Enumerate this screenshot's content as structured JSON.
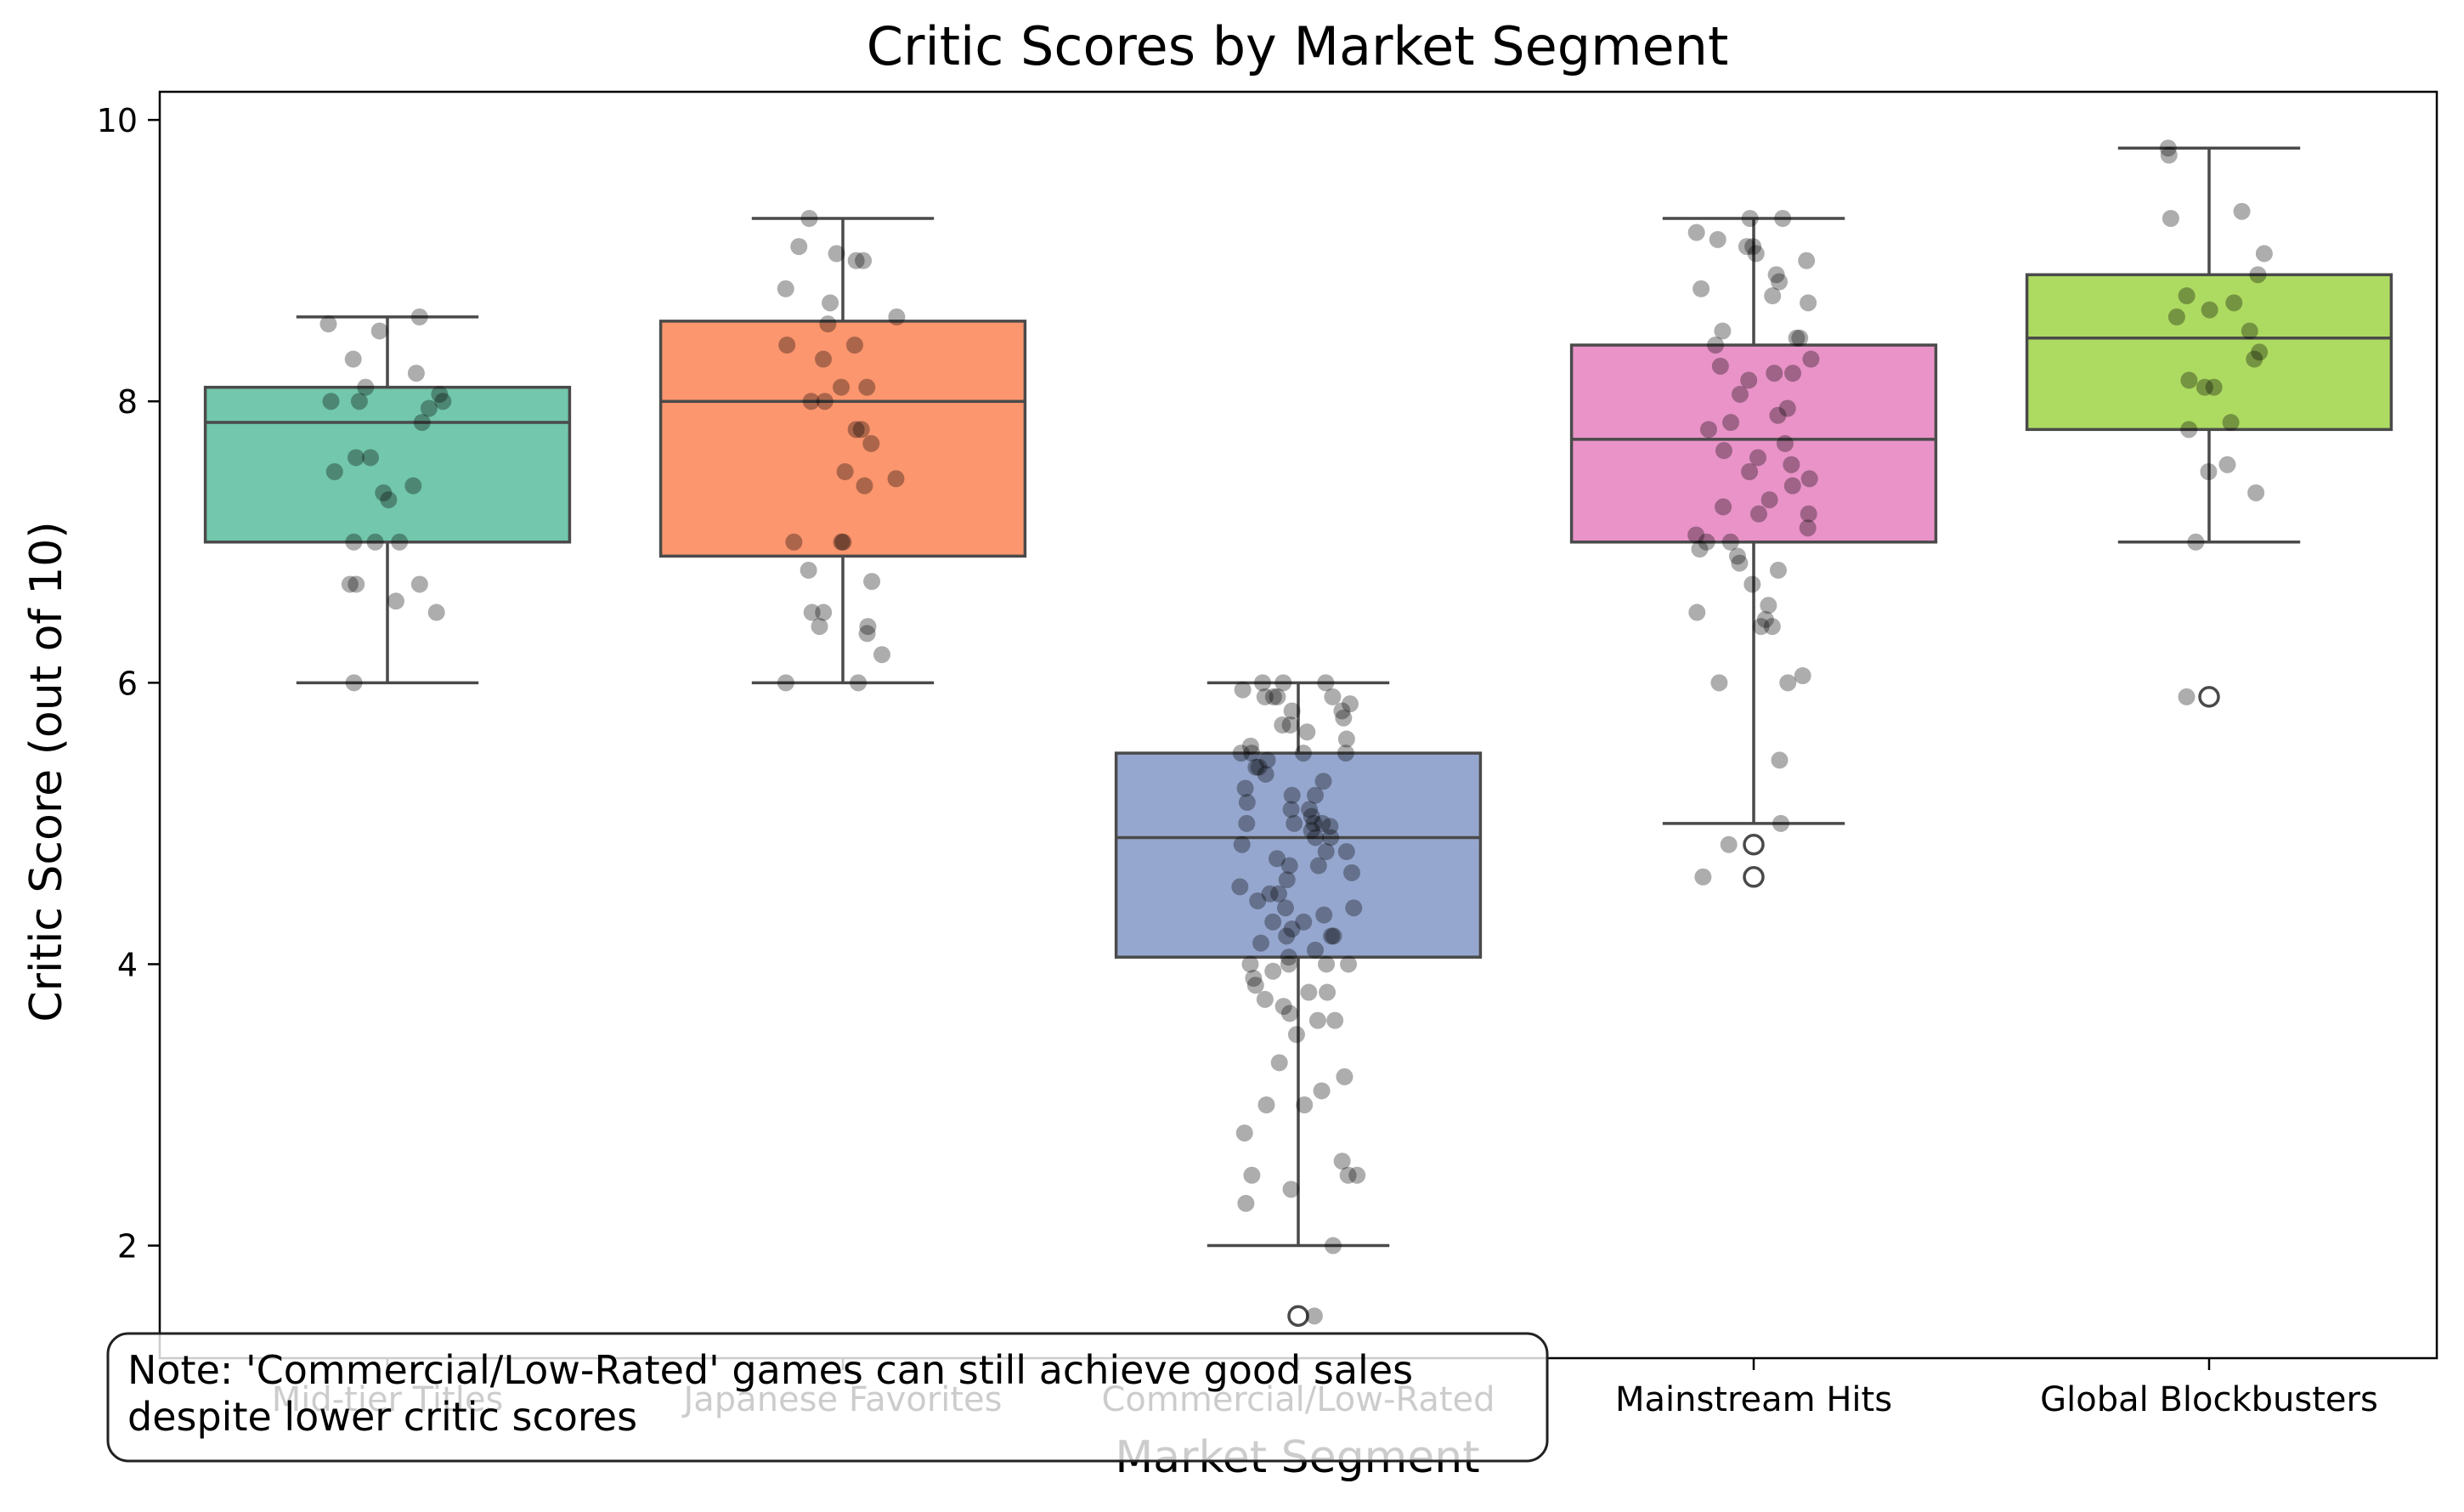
{
  "chart_data": {
    "type": "box",
    "title": "Critic Scores by Market Segment",
    "xlabel": "Market Segment",
    "ylabel": "Critic Score (out of 10)",
    "ylim": [
      1.2,
      10.2
    ],
    "yticks": [
      2,
      4,
      6,
      8,
      10
    ],
    "grid": false,
    "note": {
      "line1": "Note: 'Commercial/Low-Rated' games can still achieve good sales",
      "line2": "despite lower critic scores"
    },
    "categories": [
      "Mid-tier Titles",
      "Japanese Favorites",
      "Commercial/Low-Rated",
      "Mainstream Hits",
      "Global Blockbusters"
    ],
    "colors": [
      "#66c2a5",
      "#fc8d62",
      "#8da0cb",
      "#e78ac3",
      "#a6d854"
    ],
    "boxes": [
      {
        "whisker_low": 6.0,
        "q1": 7.0,
        "median": 7.85,
        "q3": 8.1,
        "whisker_high": 8.6,
        "outliers": []
      },
      {
        "whisker_low": 6.0,
        "q1": 6.9,
        "median": 8.0,
        "q3": 8.57,
        "whisker_high": 9.3,
        "outliers": []
      },
      {
        "whisker_low": 2.0,
        "q1": 4.05,
        "median": 4.9,
        "q3": 5.5,
        "whisker_high": 6.0,
        "outliers": [
          1.5
        ]
      },
      {
        "whisker_low": 5.0,
        "q1": 7.0,
        "median": 7.73,
        "q3": 8.4,
        "whisker_high": 9.3,
        "outliers": [
          4.85,
          4.62
        ]
      },
      {
        "whisker_low": 7.0,
        "q1": 7.8,
        "median": 8.45,
        "q3": 8.9,
        "whisker_high": 9.8,
        "outliers": [
          5.9
        ]
      }
    ],
    "points": [
      [
        8.55,
        8.6,
        8.5,
        8.3,
        8.2,
        8.1,
        8.05,
        8.0,
        8.0,
        8.0,
        7.95,
        7.85,
        7.6,
        7.6,
        7.5,
        7.4,
        7.35,
        7.3,
        7.0,
        7.0,
        7.0,
        6.7,
        6.7,
        6.7,
        6.58,
        6.5,
        6.0
      ],
      [
        9.3,
        9.1,
        9.05,
        9.0,
        9.0,
        8.8,
        8.7,
        8.6,
        8.55,
        8.4,
        8.4,
        8.3,
        8.1,
        8.1,
        8.0,
        8.0,
        7.8,
        7.8,
        7.7,
        7.5,
        7.45,
        7.4,
        7.0,
        7.0,
        7.0,
        6.8,
        6.72,
        6.5,
        6.5,
        6.4,
        6.4,
        6.35,
        6.2,
        6.0,
        6.0
      ],
      [
        6.0,
        6.0,
        6.0,
        5.95,
        5.9,
        5.9,
        5.9,
        5.9,
        5.85,
        5.8,
        5.8,
        5.75,
        5.7,
        5.7,
        5.65,
        5.6,
        5.55,
        5.5,
        5.5,
        5.5,
        5.5,
        5.45,
        5.4,
        5.4,
        5.35,
        5.3,
        5.25,
        5.2,
        5.2,
        5.15,
        5.1,
        5.1,
        5.05,
        5.0,
        5.0,
        5.0,
        5.0,
        4.98,
        4.95,
        4.9,
        4.9,
        4.85,
        4.8,
        4.8,
        4.75,
        4.7,
        4.7,
        4.65,
        4.6,
        4.55,
        4.5,
        4.5,
        4.45,
        4.4,
        4.4,
        4.35,
        4.3,
        4.3,
        4.25,
        4.2,
        4.2,
        4.2,
        4.15,
        4.1,
        4.05,
        4.0,
        4.0,
        4.0,
        4.0,
        3.95,
        3.9,
        3.85,
        3.8,
        3.8,
        3.75,
        3.7,
        3.65,
        3.6,
        3.6,
        3.5,
        3.3,
        3.2,
        3.1,
        3.0,
        3.0,
        2.8,
        2.6,
        2.5,
        2.5,
        2.5,
        2.4,
        2.3,
        2.0,
        1.5
      ],
      [
        9.3,
        9.3,
        9.2,
        9.15,
        9.1,
        9.1,
        9.05,
        9.0,
        8.9,
        8.85,
        8.8,
        8.75,
        8.7,
        8.5,
        8.45,
        8.45,
        8.4,
        8.3,
        8.25,
        8.2,
        8.2,
        8.15,
        8.05,
        7.95,
        7.9,
        7.85,
        7.8,
        7.7,
        7.65,
        7.6,
        7.55,
        7.5,
        7.45,
        7.4,
        7.3,
        7.25,
        7.2,
        7.2,
        7.1,
        7.05,
        7.0,
        7.0,
        6.95,
        6.9,
        6.85,
        6.8,
        6.7,
        6.55,
        6.5,
        6.45,
        6.4,
        6.4,
        6.05,
        6.0,
        6.0,
        5.45,
        5.0,
        4.85,
        4.62
      ],
      [
        9.8,
        9.75,
        9.35,
        9.3,
        9.05,
        8.9,
        8.75,
        8.7,
        8.65,
        8.6,
        8.5,
        8.35,
        8.3,
        8.15,
        8.1,
        8.1,
        7.85,
        7.8,
        7.55,
        7.5,
        7.35,
        7.0,
        5.9
      ]
    ]
  }
}
